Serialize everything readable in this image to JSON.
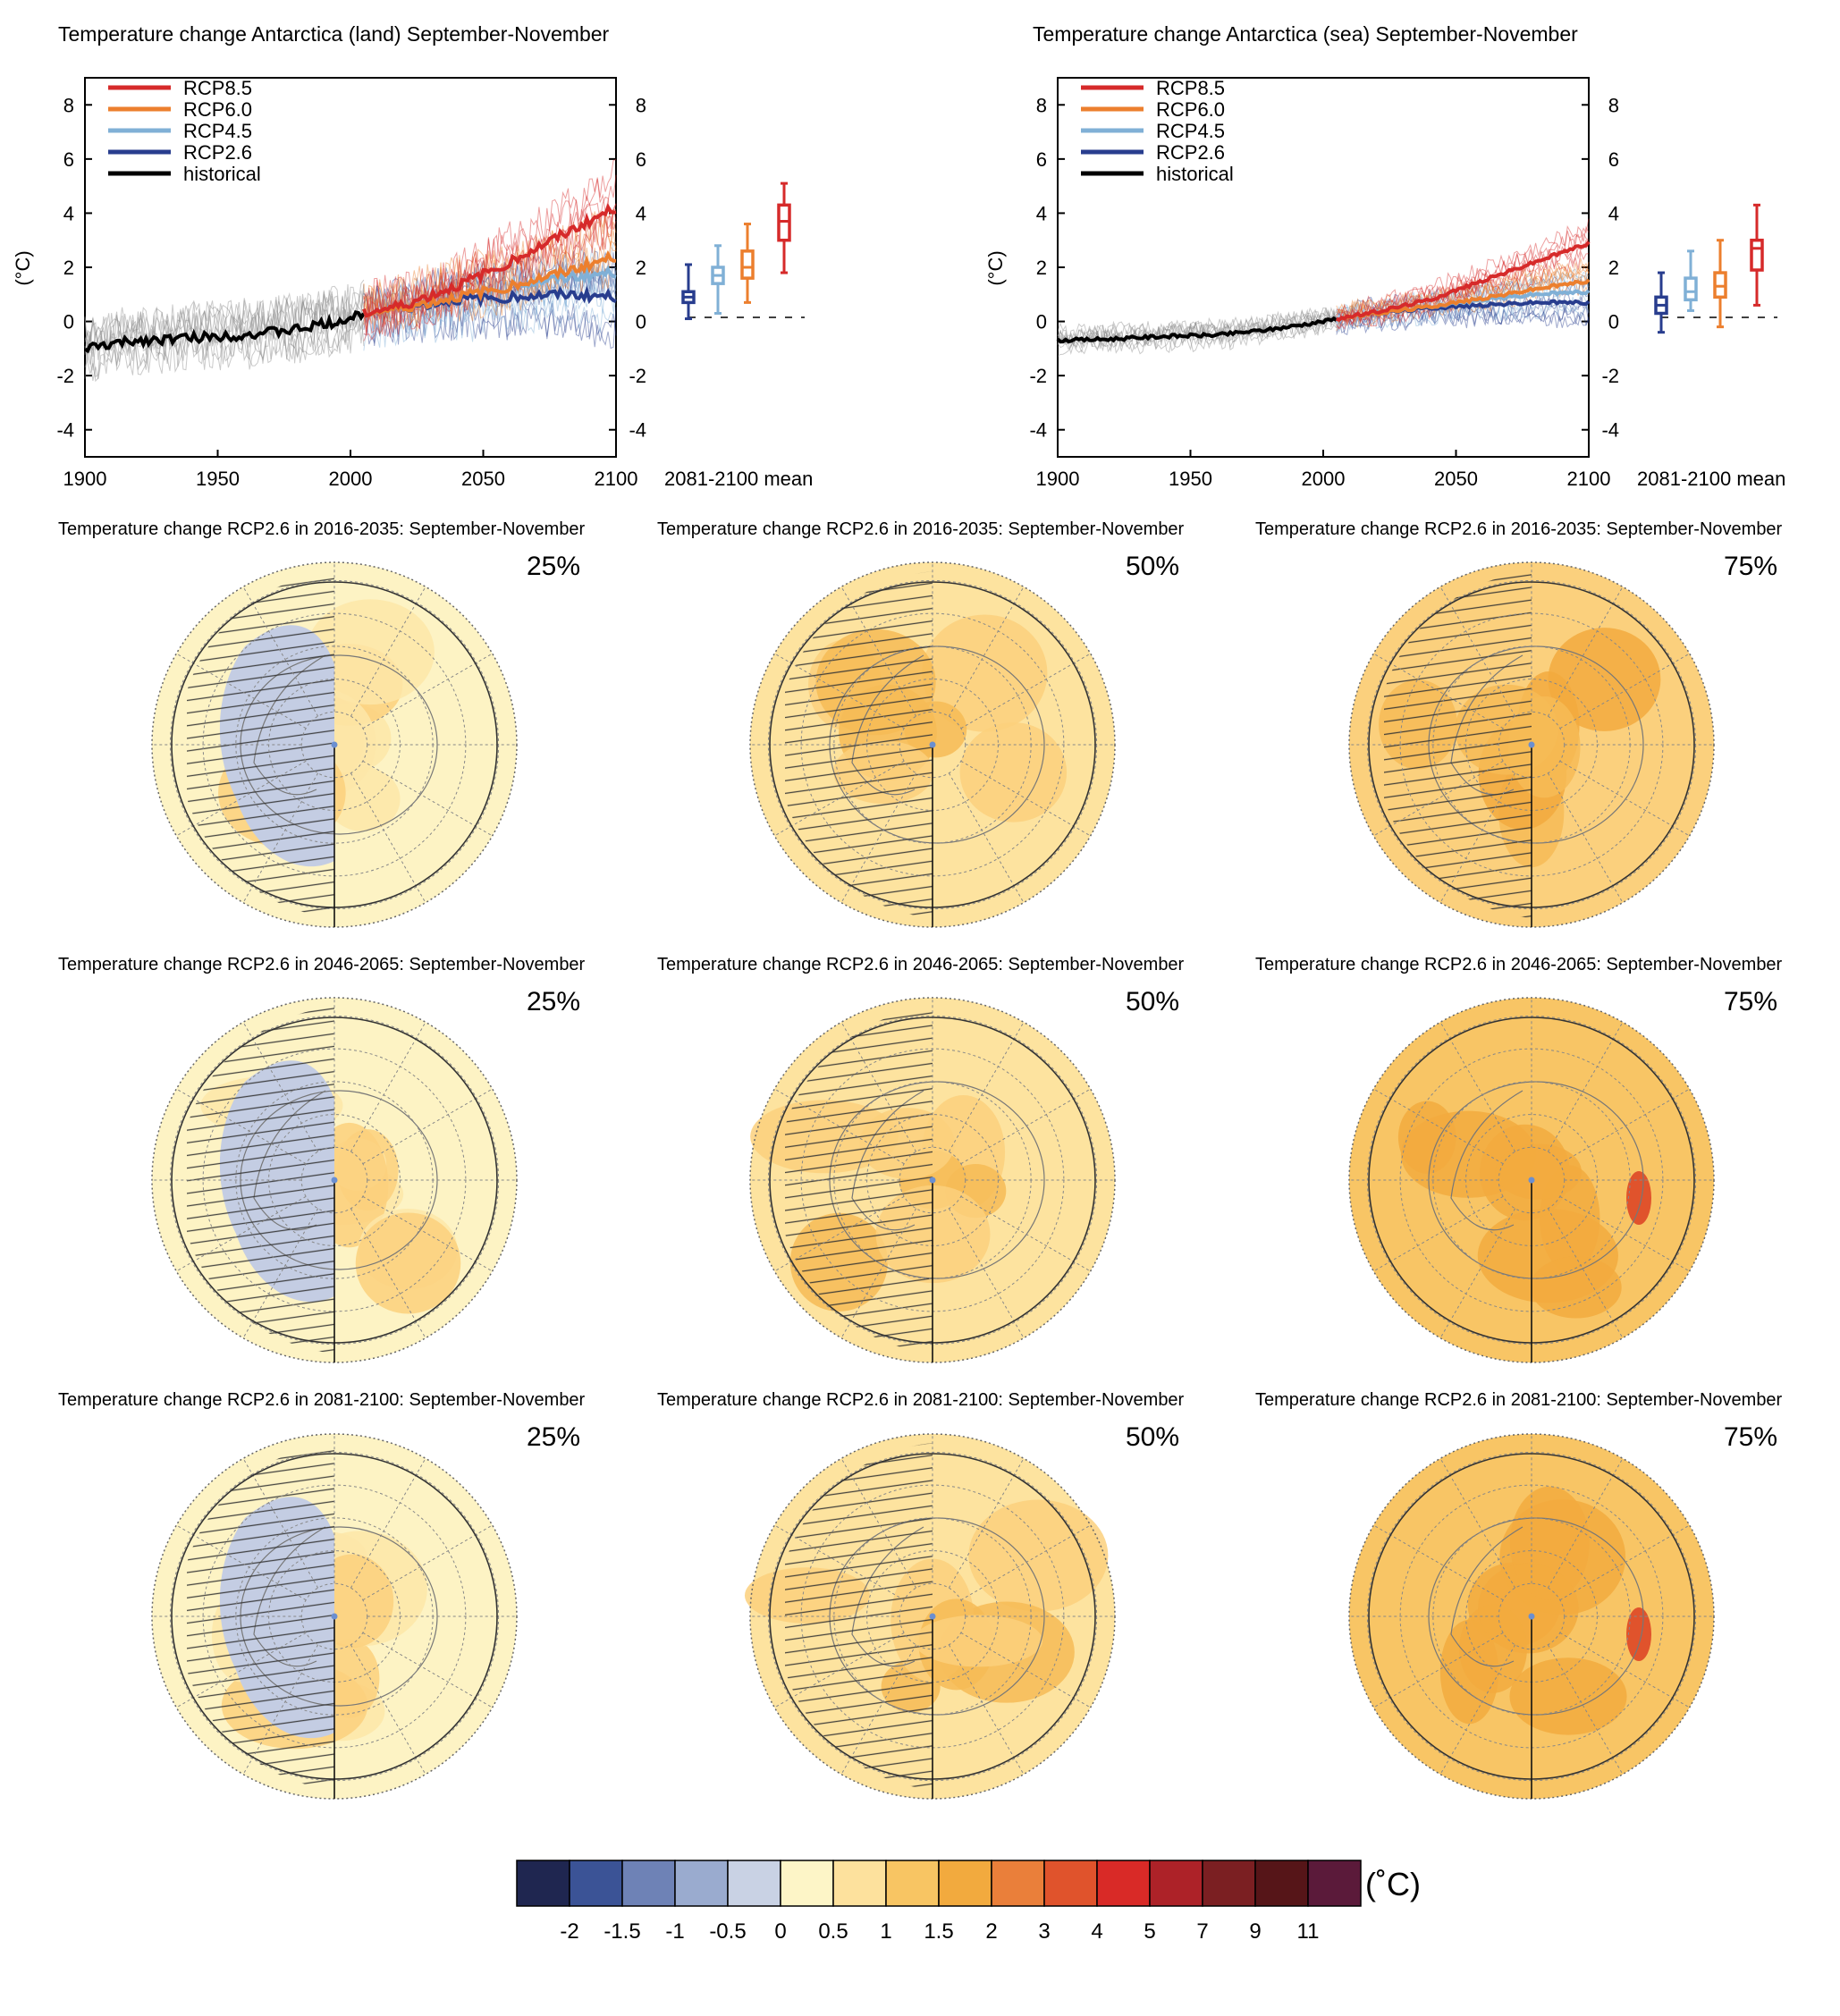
{
  "colors": {
    "rcp85": "#d62a2a",
    "rcp60": "#ec7f2e",
    "rcp45": "#80b0d6",
    "rcp26": "#283d8e",
    "historical": "#000000",
    "ensemble_hist": "#8a8a8a"
  },
  "chart_data": [
    {
      "type": "line",
      "title": "Temperature change Antarctica (land) September-November",
      "ylabel": "(°C)",
      "xlim": [
        1900,
        2100
      ],
      "ylim": [
        -5,
        9
      ],
      "x_ticks": [
        1900,
        1950,
        2000,
        2050,
        2100
      ],
      "y_ticks": [
        -4,
        -2,
        0,
        2,
        4,
        6,
        8
      ],
      "legend": {
        "position": "top-left",
        "entries": [
          "RCP8.5",
          "RCP6.0",
          "RCP4.5",
          "RCP2.6",
          "historical"
        ]
      },
      "series": [
        {
          "name": "historical",
          "x": [
            1900,
            1920,
            1940,
            1960,
            1980,
            2000,
            2005
          ],
          "y": [
            -1.0,
            -0.7,
            -0.6,
            -0.5,
            -0.3,
            0.1,
            0.3
          ]
        },
        {
          "name": "RCP2.6",
          "x": [
            2005,
            2020,
            2040,
            2060,
            2080,
            2100
          ],
          "y": [
            0.3,
            0.5,
            0.8,
            0.9,
            1.0,
            0.9
          ]
        },
        {
          "name": "RCP4.5",
          "x": [
            2005,
            2020,
            2040,
            2060,
            2080,
            2100
          ],
          "y": [
            0.3,
            0.5,
            0.9,
            1.3,
            1.6,
            1.8
          ]
        },
        {
          "name": "RCP6.0",
          "x": [
            2005,
            2020,
            2040,
            2060,
            2080,
            2100
          ],
          "y": [
            0.3,
            0.5,
            0.9,
            1.3,
            1.8,
            2.4
          ]
        },
        {
          "name": "RCP8.5",
          "x": [
            2005,
            2020,
            2040,
            2060,
            2080,
            2100
          ],
          "y": [
            0.3,
            0.6,
            1.3,
            2.2,
            3.2,
            4.2
          ]
        }
      ],
      "boxes": {
        "label": "2081-2100 mean",
        "items": [
          {
            "name": "RCP2.6",
            "min": 0.1,
            "q1": 0.7,
            "median": 0.9,
            "q3": 1.1,
            "max": 2.1
          },
          {
            "name": "RCP4.5",
            "min": 0.3,
            "q1": 1.4,
            "median": 1.7,
            "q3": 2.0,
            "max": 2.8
          },
          {
            "name": "RCP6.0",
            "min": 0.7,
            "q1": 1.6,
            "median": 2.0,
            "q3": 2.6,
            "max": 3.6
          },
          {
            "name": "RCP8.5",
            "min": 1.8,
            "q1": 3.0,
            "median": 3.7,
            "q3": 4.3,
            "max": 5.1
          }
        ]
      }
    },
    {
      "type": "line",
      "title": "Temperature change Antarctica (sea) September-November",
      "ylabel": "(°C)",
      "xlim": [
        1900,
        2100
      ],
      "ylim": [
        -5,
        9
      ],
      "x_ticks": [
        1900,
        1950,
        2000,
        2050,
        2100
      ],
      "y_ticks": [
        -4,
        -2,
        0,
        2,
        4,
        6,
        8
      ],
      "legend": {
        "position": "top-left",
        "entries": [
          "RCP8.5",
          "RCP6.0",
          "RCP4.5",
          "RCP2.6",
          "historical"
        ]
      },
      "series": [
        {
          "name": "historical",
          "x": [
            1900,
            1920,
            1940,
            1960,
            1980,
            2000,
            2005
          ],
          "y": [
            -0.7,
            -0.65,
            -0.55,
            -0.5,
            -0.3,
            0.0,
            0.1
          ]
        },
        {
          "name": "RCP2.6",
          "x": [
            2005,
            2020,
            2040,
            2060,
            2080,
            2100
          ],
          "y": [
            0.1,
            0.3,
            0.5,
            0.6,
            0.7,
            0.7
          ]
        },
        {
          "name": "RCP4.5",
          "x": [
            2005,
            2020,
            2040,
            2060,
            2080,
            2100
          ],
          "y": [
            0.1,
            0.3,
            0.55,
            0.8,
            1.0,
            1.1
          ]
        },
        {
          "name": "RCP6.0",
          "x": [
            2005,
            2020,
            2040,
            2060,
            2080,
            2100
          ],
          "y": [
            0.1,
            0.3,
            0.55,
            0.85,
            1.2,
            1.5
          ]
        },
        {
          "name": "RCP8.5",
          "x": [
            2005,
            2020,
            2040,
            2060,
            2080,
            2100
          ],
          "y": [
            0.1,
            0.35,
            0.8,
            1.5,
            2.2,
            2.9
          ]
        }
      ],
      "boxes": {
        "label": "2081-2100 mean",
        "items": [
          {
            "name": "RCP2.6",
            "min": -0.4,
            "q1": 0.3,
            "median": 0.6,
            "q3": 0.9,
            "max": 1.8
          },
          {
            "name": "RCP4.5",
            "min": 0.4,
            "q1": 0.8,
            "median": 1.1,
            "q3": 1.6,
            "max": 2.6
          },
          {
            "name": "RCP6.0",
            "min": -0.2,
            "q1": 0.9,
            "median": 1.3,
            "q3": 1.8,
            "max": 3.0
          },
          {
            "name": "RCP8.5",
            "min": 0.6,
            "q1": 1.9,
            "median": 2.7,
            "q3": 3.0,
            "max": 4.3
          }
        ]
      }
    }
  ],
  "maps": [
    {
      "title": "Temperature change RCP2.6 in 2016-2035: September-November",
      "percentile": "25%",
      "warm_level": 0
    },
    {
      "title": "Temperature change RCP2.6 in 2016-2035: September-November",
      "percentile": "50%",
      "warm_level": 1
    },
    {
      "title": "Temperature change RCP2.6 in 2016-2035: September-November",
      "percentile": "75%",
      "warm_level": 2
    },
    {
      "title": "Temperature change RCP2.6 in 2046-2065: September-November",
      "percentile": "25%",
      "warm_level": 0
    },
    {
      "title": "Temperature change RCP2.6 in 2046-2065: September-November",
      "percentile": "50%",
      "warm_level": 1
    },
    {
      "title": "Temperature change RCP2.6 in 2046-2065: September-November",
      "percentile": "75%",
      "warm_level": 3
    },
    {
      "title": "Temperature change RCP2.6 in 2081-2100: September-November",
      "percentile": "25%",
      "warm_level": 0
    },
    {
      "title": "Temperature change RCP2.6 in 2081-2100: September-November",
      "percentile": "50%",
      "warm_level": 1
    },
    {
      "title": "Temperature change RCP2.6 in 2081-2100: September-November",
      "percentile": "75%",
      "warm_level": 3
    }
  ],
  "colorbar": {
    "unit": "(˚C)",
    "colors": [
      "#1f2650",
      "#3b5396",
      "#6e82b6",
      "#9aabcf",
      "#c9d2e4",
      "#fdf5c7",
      "#fde19d",
      "#f8c563",
      "#f2aa3e",
      "#ea7f3a",
      "#e0532c",
      "#d92a27",
      "#ad2228",
      "#7b1f22",
      "#561518",
      "#5b1a3a"
    ],
    "labels": [
      "-2",
      "-1.5",
      "-1",
      "-0.5",
      "0",
      "0.5",
      "1",
      "1.5",
      "2",
      "3",
      "4",
      "5",
      "7",
      "9",
      "11"
    ]
  }
}
